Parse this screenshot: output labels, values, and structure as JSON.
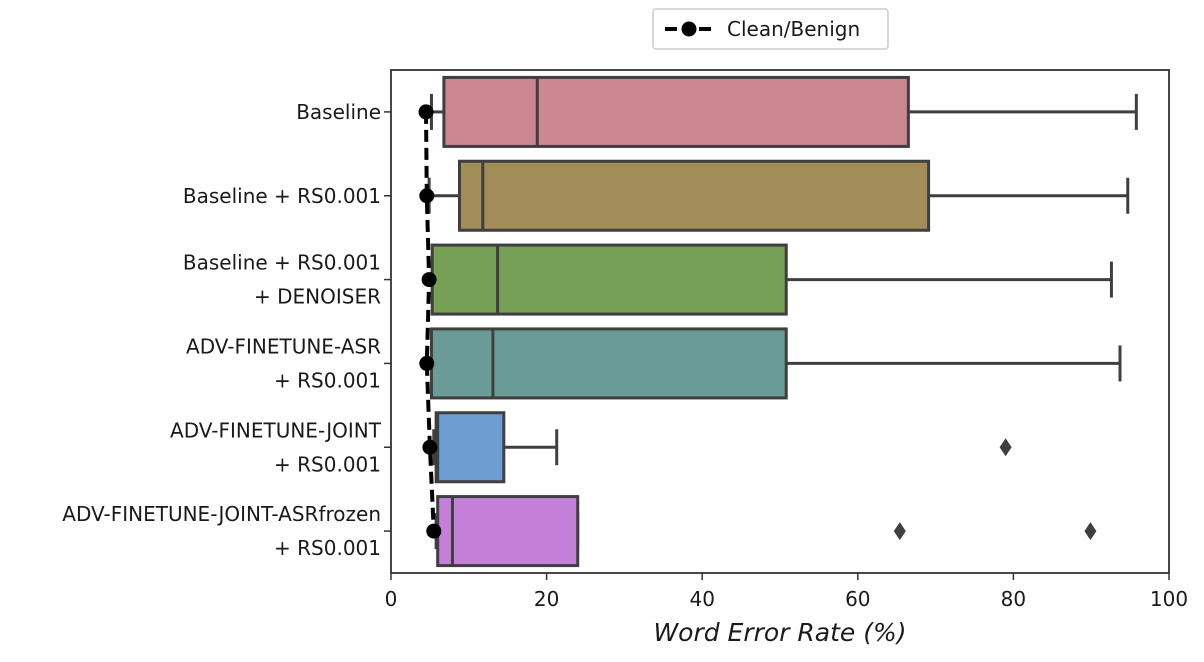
{
  "chart_data": {
    "type": "box",
    "orientation": "horizontal",
    "title": "",
    "xlabel": "Word Error Rate (%)",
    "ylabel": "",
    "xlim": [
      0,
      100
    ],
    "xticks": [
      "0",
      "20",
      "40",
      "60",
      "80",
      "100"
    ],
    "grid": false,
    "legend": {
      "position": "top-center",
      "entries": [
        "Clean/Benign"
      ]
    },
    "categories": [
      {
        "lines": [
          "Baseline"
        ],
        "color": "#cd8791",
        "whisker_low": 5.2,
        "q1": 6.8,
        "median": 18.8,
        "q3": 66.5,
        "whisker_high": 95.8,
        "outliers": []
      },
      {
        "lines": [
          "Baseline  + RS0.001"
        ],
        "color": "#a28c57",
        "whisker_low": 4.9,
        "q1": 8.8,
        "median": 11.8,
        "q3": 69.1,
        "whisker_high": 94.7,
        "outliers": []
      },
      {
        "lines": [
          "Baseline  + RS0.001",
          "+ DENOISER"
        ],
        "color": "#75a055",
        "whisker_low": 5.3,
        "q1": 5.3,
        "median": 13.7,
        "q3": 50.8,
        "whisker_high": 92.6,
        "outliers": []
      },
      {
        "lines": [
          "ADV-FINETUNE-ASR",
          "+ RS0.001"
        ],
        "color": "#6b9b97",
        "whisker_low": 5.2,
        "q1": 5.2,
        "median": 13.1,
        "q3": 50.8,
        "whisker_high": 93.7,
        "outliers": []
      },
      {
        "lines": [
          "ADV-FINETUNE-JOINT",
          "+ RS0.001"
        ],
        "color": "#6e9dd2",
        "whisker_low": 5.5,
        "q1": 5.8,
        "median": 6.0,
        "q3": 14.5,
        "whisker_high": 21.3,
        "outliers": [
          79.0
        ]
      },
      {
        "lines": [
          "ADV-FINETUNE-JOINT-ASRfrozen",
          "+ RS0.001"
        ],
        "color": "#c47fd8",
        "whisker_low": 5.8,
        "q1": 6.0,
        "median": 7.9,
        "q3": 24.0,
        "whisker_high": 24.0,
        "outliers": [
          65.4,
          89.9
        ]
      }
    ],
    "clean_series": {
      "name": "Clean/Benign",
      "values": [
        4.5,
        4.6,
        4.9,
        4.6,
        5.0,
        5.5
      ]
    }
  }
}
